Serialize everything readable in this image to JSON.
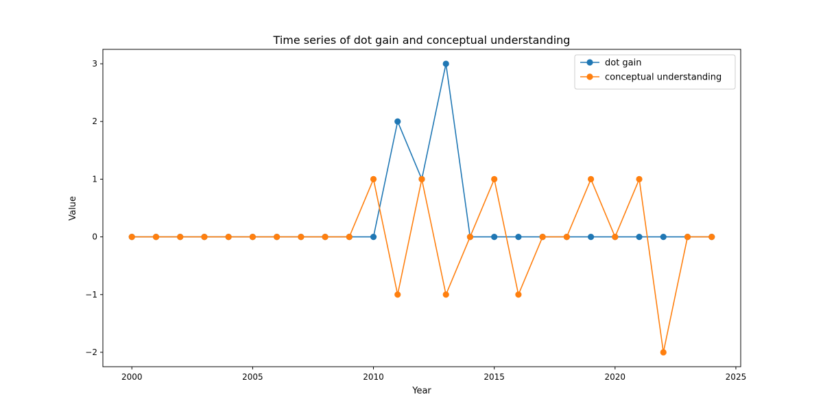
{
  "chart_data": {
    "type": "line",
    "title": "Time series of dot gain and conceptual understanding",
    "xlabel": "Year",
    "ylabel": "Value",
    "x": [
      2000,
      2001,
      2002,
      2003,
      2004,
      2005,
      2006,
      2007,
      2008,
      2009,
      2010,
      2011,
      2012,
      2013,
      2014,
      2015,
      2016,
      2017,
      2018,
      2019,
      2020,
      2021,
      2022,
      2023,
      2024
    ],
    "xlim": [
      1998.8,
      2025.2
    ],
    "ylim": [
      -2.25,
      3.25
    ],
    "x_ticks": [
      2000,
      2005,
      2010,
      2015,
      2020,
      2025
    ],
    "y_ticks": [
      -2,
      -1,
      0,
      1,
      2,
      3
    ],
    "x_tick_labels": [
      "2000",
      "2005",
      "2010",
      "2015",
      "2020",
      "2025"
    ],
    "y_tick_labels": [
      "−2",
      "−1",
      "0",
      "1",
      "2",
      "3"
    ],
    "grid": false,
    "legend_position": "top-right",
    "marker": "circle",
    "series": [
      {
        "name": "dot gain",
        "color": "#1f77b4",
        "values": [
          0,
          0,
          0,
          0,
          0,
          0,
          0,
          0,
          0,
          0,
          0,
          2,
          1,
          3,
          0,
          0,
          0,
          0,
          0,
          0,
          0,
          0,
          0,
          0,
          0
        ]
      },
      {
        "name": "conceptual understanding",
        "color": "#ff7f0e",
        "values": [
          0,
          0,
          0,
          0,
          0,
          0,
          0,
          0,
          0,
          0,
          1,
          -1,
          1,
          -1,
          0,
          1,
          -1,
          0,
          0,
          1,
          0,
          1,
          -2,
          0,
          0
        ]
      }
    ]
  }
}
